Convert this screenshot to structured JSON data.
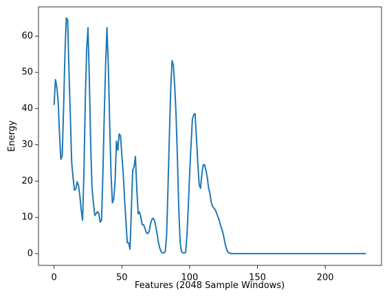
{
  "chart_data": {
    "type": "line",
    "xlabel": "Features (2048 Sample Windows)",
    "ylabel": "Energy",
    "color": "#1f77b4",
    "x": [
      0,
      1,
      2,
      3,
      4,
      5,
      6,
      7,
      8,
      9,
      10,
      11,
      12,
      13,
      14,
      15,
      16,
      17,
      18,
      19,
      20,
      21,
      22,
      23,
      24,
      25,
      26,
      27,
      28,
      29,
      30,
      31,
      32,
      33,
      34,
      35,
      36,
      37,
      38,
      39,
      40,
      41,
      42,
      43,
      44,
      45,
      46,
      47,
      48,
      49,
      50,
      51,
      52,
      53,
      54,
      55,
      56,
      57,
      58,
      59,
      60,
      61,
      62,
      63,
      64,
      65,
      66,
      67,
      68,
      69,
      70,
      71,
      72,
      73,
      74,
      75,
      76,
      77,
      78,
      79,
      80,
      81,
      82,
      83,
      84,
      85,
      86,
      87,
      88,
      89,
      90,
      91,
      92,
      93,
      94,
      95,
      96,
      97,
      98,
      99,
      100,
      101,
      102,
      103,
      104,
      105,
      106,
      107,
      108,
      109,
      110,
      111,
      112,
      113,
      114,
      115,
      116,
      117,
      118,
      119,
      120,
      121,
      122,
      123,
      124,
      125,
      126,
      127,
      128,
      129,
      130,
      131,
      132,
      133,
      134,
      135,
      136,
      137,
      138,
      139,
      140,
      141,
      142,
      143,
      144,
      145,
      146,
      147,
      148,
      149,
      150,
      151,
      152,
      153,
      154,
      155,
      156,
      157,
      158,
      159,
      160,
      161,
      162,
      163,
      164,
      165,
      166,
      167,
      168,
      169,
      170,
      171,
      172,
      173,
      174,
      175,
      176,
      177,
      178,
      179,
      180,
      181,
      182,
      183,
      184,
      185,
      186,
      187,
      188,
      189,
      190,
      191,
      192,
      193,
      194,
      195,
      196,
      197,
      198,
      199,
      200,
      201,
      202,
      203,
      204,
      205,
      206,
      207,
      208,
      209,
      210,
      211,
      212,
      213,
      214,
      215,
      216,
      217,
      218,
      219,
      220,
      221,
      222,
      223,
      224,
      225,
      226,
      227,
      228,
      229,
      230
    ],
    "values": [
      41,
      48,
      46,
      42,
      33,
      26,
      27,
      40,
      55,
      65,
      64.5,
      50,
      38,
      25,
      21,
      17.5,
      17.8,
      19.8,
      18.8,
      16,
      12,
      9.2,
      22,
      42,
      56,
      62.3,
      48,
      30,
      18,
      14,
      10.5,
      11,
      11.6,
      11,
      8.7,
      9.2,
      22,
      38,
      52,
      62.3,
      52,
      36,
      22,
      14,
      15,
      20,
      31,
      28.5,
      33,
      32.5,
      27,
      22,
      15,
      9,
      3,
      3,
      1.2,
      12,
      23,
      24,
      26.8,
      18,
      11,
      11.5,
      10,
      8,
      8,
      7,
      5.8,
      5.5,
      6,
      8,
      9.3,
      9.8,
      9.2,
      7.5,
      5.5,
      3,
      1.5,
      0.5,
      0.2,
      0.2,
      0.5,
      5,
      18,
      32,
      45,
      53.2,
      52,
      46,
      38,
      26,
      12,
      3,
      0.5,
      0.2,
      0.2,
      0.3,
      5,
      13,
      22,
      30,
      37,
      38.3,
      38.6,
      32,
      25,
      19,
      18,
      22,
      24.5,
      24.5,
      23,
      21,
      18,
      16.5,
      14,
      13,
      12.5,
      12,
      11,
      10,
      9,
      7.5,
      6.5,
      5,
      3,
      1.5,
      0.5,
      0.2,
      0.1,
      0,
      0,
      0,
      0,
      0,
      0,
      0,
      0,
      0,
      0,
      0,
      0,
      0,
      0,
      0,
      0,
      0,
      0,
      0,
      0,
      0,
      0,
      0,
      0,
      0,
      0,
      0,
      0,
      0,
      0,
      0,
      0,
      0,
      0,
      0,
      0,
      0,
      0,
      0,
      0,
      0,
      0,
      0,
      0,
      0,
      0,
      0,
      0,
      0,
      0,
      0,
      0,
      0,
      0,
      0,
      0,
      0,
      0,
      0,
      0,
      0,
      0,
      0,
      0,
      0,
      0,
      0,
      0,
      0,
      0,
      0,
      0,
      0,
      0,
      0,
      0,
      0,
      0,
      0,
      0,
      0,
      0,
      0,
      0,
      0,
      0,
      0,
      0,
      0,
      0,
      0,
      0,
      0,
      0,
      0,
      0,
      0,
      0,
      0,
      0
    ],
    "xlim": [
      -11.5,
      241.5
    ],
    "xticks": [
      0,
      50,
      100,
      150,
      200
    ],
    "ylim": [
      -3.24,
      68.04
    ],
    "yticks": [
      0,
      10,
      20,
      30,
      40,
      50,
      60
    ]
  }
}
